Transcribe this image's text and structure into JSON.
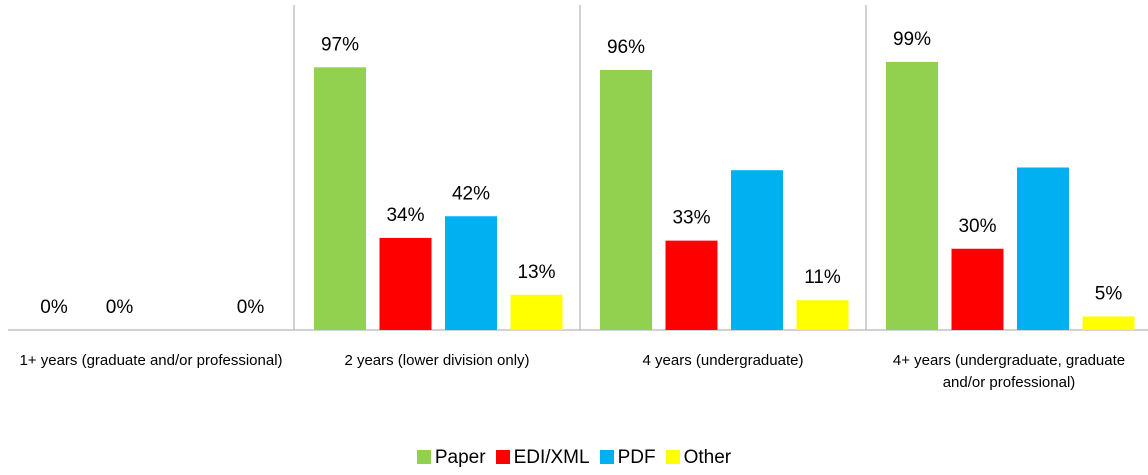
{
  "chart_data": {
    "type": "bar",
    "categories": [
      "1+ years (graduate and/or professional)",
      "2 years (lower division only)",
      "4 years (undergraduate)",
      "4+ years (undergraduate, graduate and/or professional)"
    ],
    "series": [
      {
        "name": "Paper",
        "color": "#92d050",
        "values": [
          0,
          97,
          96,
          99
        ],
        "value_labels": [
          "0%",
          "97%",
          "96%",
          "99%"
        ]
      },
      {
        "name": "EDI/XML",
        "color": "#ff0000",
        "values": [
          0,
          34,
          33,
          30
        ],
        "value_labels": [
          "0%",
          "34%",
          "33%",
          "30%"
        ]
      },
      {
        "name": "PDF",
        "color": "#00b0f0",
        "values": [
          null,
          42,
          59,
          60
        ],
        "value_labels": [
          null,
          "42%",
          null,
          null
        ]
      },
      {
        "name": "Other",
        "color": "#ffff00",
        "values": [
          0,
          13,
          11,
          5
        ],
        "value_labels": [
          "0%",
          "13%",
          "11%",
          "5%"
        ]
      }
    ],
    "ylim": [
      0,
      120
    ],
    "legend": "bottom"
  }
}
